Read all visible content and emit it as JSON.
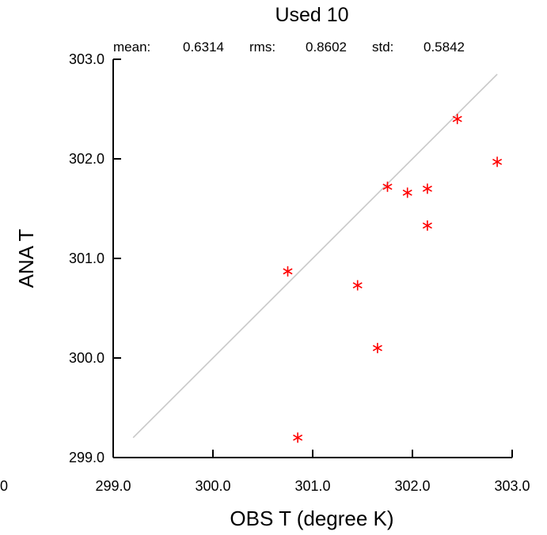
{
  "chart_data": {
    "type": "scatter",
    "title": "Used  10",
    "stats": [
      {
        "label": "mean:",
        "value": "0.6314"
      },
      {
        "label": "rms:",
        "value": "0.8602"
      },
      {
        "label": "std:",
        "value": "0.5842"
      }
    ],
    "xlabel": "OBS T  (degree K)",
    "ylabel": "ANA T",
    "xlim": [
      299.0,
      303.0
    ],
    "ylim": [
      299.0,
      303.0
    ],
    "xticks": [
      299.0,
      300.0,
      301.0,
      302.0,
      303.0
    ],
    "yticks": [
      299.0,
      300.0,
      301.0,
      302.0,
      303.0
    ],
    "xtick_labels": [
      "299.0",
      "300.0",
      "301.0",
      "302.0",
      "303.0"
    ],
    "ytick_labels": [
      "299.0",
      "300.0",
      "301.0",
      "302.0",
      "303.0"
    ],
    "left_clipped_label": "0",
    "grid": false,
    "reference_line": {
      "x": [
        299.2,
        302.85
      ],
      "y": [
        299.2,
        302.85
      ],
      "color": "#c8c8c8"
    },
    "marker_color": "#ff0000",
    "points": [
      {
        "x": 300.75,
        "y": 300.87
      },
      {
        "x": 300.85,
        "y": 299.2
      },
      {
        "x": 301.45,
        "y": 300.73
      },
      {
        "x": 301.65,
        "y": 300.1
      },
      {
        "x": 301.75,
        "y": 301.72
      },
      {
        "x": 301.95,
        "y": 301.66
      },
      {
        "x": 302.15,
        "y": 301.7
      },
      {
        "x": 302.15,
        "y": 301.33
      },
      {
        "x": 302.45,
        "y": 302.4
      },
      {
        "x": 302.85,
        "y": 301.97
      }
    ]
  }
}
